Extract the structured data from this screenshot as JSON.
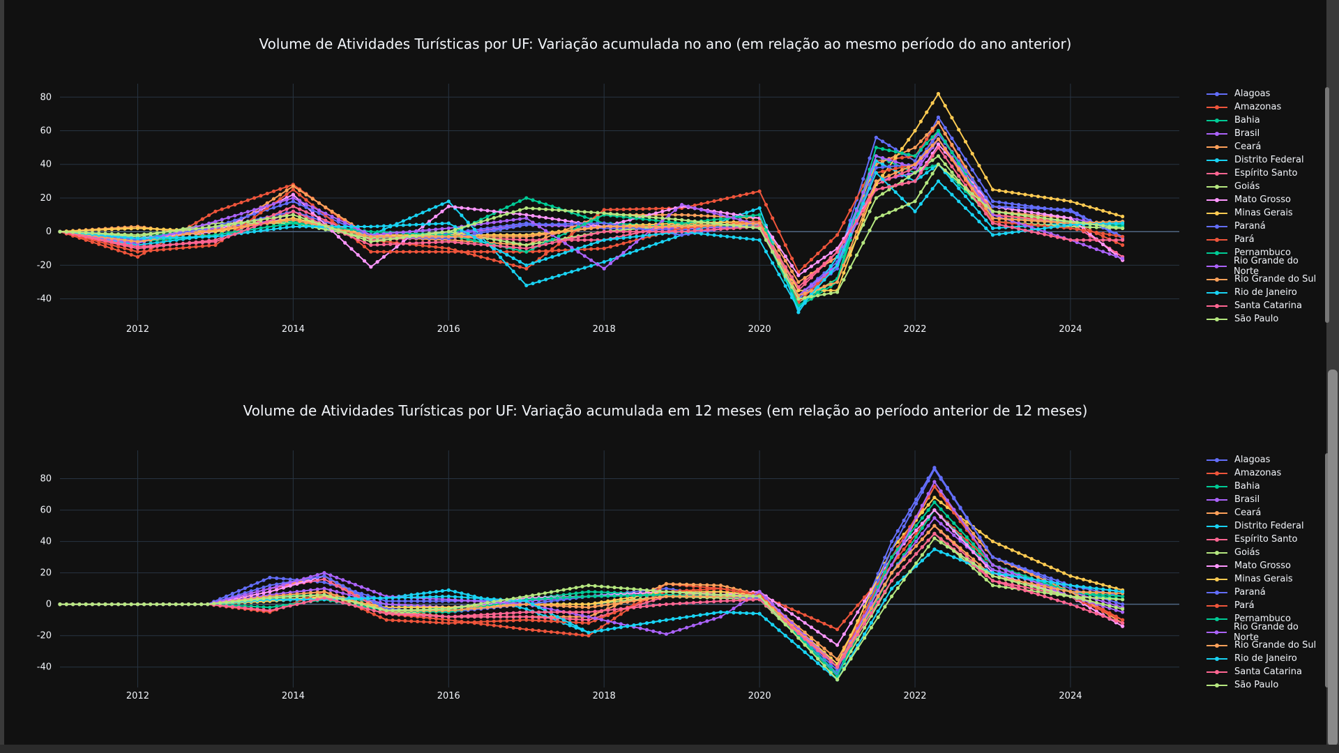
{
  "colors": {
    "background": "#111111",
    "grid": "#283442",
    "text": "#f2f5fa"
  },
  "series_names": [
    "Alagoas",
    "Amazonas",
    "Bahia",
    "Brasil",
    "Ceará",
    "Distrito Federal",
    "Espírito Santo",
    "Goiás",
    "Mato Grosso",
    "Minas Gerais",
    "Paraná",
    "Pará",
    "Pernambuco",
    "Rio Grande do Norte",
    "Rio Grande do Sul",
    "Rio de Janeiro",
    "Santa Catarina",
    "São Paulo"
  ],
  "series_colors": [
    "#636efa",
    "#EF553B",
    "#00cc96",
    "#ab63fa",
    "#FFA15A",
    "#19d3f3",
    "#FF6692",
    "#B6E880",
    "#FF97FF",
    "#FECB52",
    "#636efa",
    "#EF553B",
    "#00cc96",
    "#ab63fa",
    "#FFA15A",
    "#19d3f3",
    "#FF6692",
    "#B6E880"
  ],
  "chart_data": [
    {
      "type": "line",
      "title": "Volume de Atividades Turísticas por UF: Variação acumulada no ano (em relação ao mesmo período do ano anterior)",
      "xlabel": "",
      "ylabel": "",
      "xlim": [
        2011.0,
        2025.4
      ],
      "ylim": [
        -53,
        88
      ],
      "x_ticks": [
        2012,
        2014,
        2016,
        2018,
        2020,
        2022,
        2024
      ],
      "y_ticks": [
        -40,
        -20,
        0,
        20,
        40,
        60,
        80
      ],
      "x_anchor": [
        2011.0,
        2012.0,
        2013.0,
        2014.0,
        2015.0,
        2016.0,
        2017.0,
        2018.0,
        2019.0,
        2020.0,
        2020.5,
        2021.0,
        2021.5,
        2022.0,
        2022.3,
        2023.0,
        2024.0,
        2024.67
      ],
      "legend": "right",
      "grid": true,
      "series": [
        {
          "name": "Alagoas",
          "y": [
            0,
            -6,
            2,
            12,
            -3,
            -1,
            5,
            2,
            1,
            6,
            -38,
            -18,
            56,
            42,
            68,
            18,
            12,
            -3
          ]
        },
        {
          "name": "Amazonas",
          "y": [
            0,
            -15,
            12,
            28,
            -5,
            -10,
            -22,
            13,
            14,
            24,
            -24,
            -2,
            42,
            45,
            65,
            10,
            6,
            -8
          ]
        },
        {
          "name": "Bahia",
          "y": [
            0,
            -4,
            3,
            6,
            -4,
            -2,
            20,
            5,
            3,
            4,
            -45,
            -30,
            45,
            35,
            40,
            8,
            6,
            4
          ]
        },
        {
          "name": "Brasil",
          "y": [
            0,
            -5,
            2,
            8,
            -3,
            -2,
            4,
            3,
            2,
            3,
            -40,
            -20,
            30,
            35,
            55,
            12,
            8,
            2
          ]
        },
        {
          "name": "Ceará",
          "y": [
            0,
            3,
            -3,
            27,
            -3,
            -5,
            -8,
            10,
            10,
            8,
            -30,
            -15,
            40,
            50,
            65,
            12,
            8,
            -17
          ]
        },
        {
          "name": "Distrito Federal",
          "y": [
            0,
            -8,
            -2,
            5,
            -2,
            18,
            -32,
            -18,
            -2,
            14,
            -48,
            -15,
            42,
            30,
            40,
            2,
            5,
            6
          ]
        },
        {
          "name": "Espírito Santo",
          "y": [
            0,
            -10,
            -5,
            15,
            -5,
            -3,
            -5,
            -5,
            5,
            6,
            -35,
            -12,
            28,
            38,
            60,
            10,
            5,
            -15
          ]
        },
        {
          "name": "Goiás",
          "y": [
            0,
            -3,
            5,
            5,
            -4,
            0,
            -8,
            0,
            4,
            4,
            -42,
            -28,
            20,
            35,
            45,
            6,
            3,
            2
          ]
        },
        {
          "name": "Mato Grosso",
          "y": [
            0,
            -4,
            0,
            22,
            -21,
            15,
            10,
            3,
            15,
            8,
            -26,
            -10,
            25,
            30,
            52,
            15,
            8,
            -17
          ]
        },
        {
          "name": "Minas Gerais",
          "y": [
            0,
            2,
            0,
            8,
            -2,
            -2,
            -2,
            3,
            5,
            6,
            -35,
            -35,
            28,
            60,
            82,
            25,
            18,
            9
          ]
        },
        {
          "name": "Paraná",
          "y": [
            0,
            -5,
            3,
            18,
            -3,
            -4,
            4,
            5,
            -2,
            5,
            -40,
            -22,
            38,
            40,
            58,
            15,
            13,
            -4
          ]
        },
        {
          "name": "Pará",
          "y": [
            0,
            -12,
            -8,
            25,
            -12,
            -12,
            -12,
            -10,
            2,
            6,
            -42,
            -20,
            35,
            40,
            55,
            6,
            2,
            -3
          ]
        },
        {
          "name": "Pernambuco",
          "y": [
            0,
            -6,
            -2,
            5,
            0,
            -2,
            -12,
            10,
            5,
            10,
            -44,
            -28,
            50,
            45,
            60,
            8,
            5,
            3
          ]
        },
        {
          "name": "Rio Grande do Norte",
          "y": [
            0,
            -7,
            6,
            20,
            -2,
            2,
            8,
            -22,
            16,
            4,
            -38,
            -20,
            45,
            38,
            55,
            10,
            -5,
            -16
          ]
        },
        {
          "name": "Rio Grande do Sul",
          "y": [
            0,
            -6,
            1,
            7,
            -3,
            -3,
            -3,
            3,
            3,
            5,
            -38,
            -30,
            30,
            40,
            55,
            8,
            5,
            6
          ]
        },
        {
          "name": "Rio de Janeiro",
          "y": [
            0,
            -4,
            -3,
            3,
            3,
            5,
            -20,
            -5,
            0,
            -5,
            -46,
            -20,
            35,
            12,
            30,
            -2,
            4,
            5
          ]
        },
        {
          "name": "Santa Catarina",
          "y": [
            0,
            -9,
            -6,
            12,
            -8,
            -6,
            -10,
            0,
            0,
            3,
            -33,
            -12,
            25,
            30,
            50,
            5,
            -5,
            -5
          ]
        },
        {
          "name": "São Paulo",
          "y": [
            0,
            -2,
            3,
            10,
            -6,
            0,
            14,
            11,
            7,
            2,
            -40,
            -36,
            8,
            18,
            40,
            12,
            6,
            2
          ]
        }
      ]
    },
    {
      "type": "line",
      "title": "Volume de Atividades Turísticas por UF: Variação acumulada em 12 meses (em relação ao período anterior de 12 meses)",
      "xlabel": "",
      "ylabel": "",
      "xlim": [
        2011.0,
        2025.4
      ],
      "ylim": [
        -53,
        98
      ],
      "x_ticks": [
        2012,
        2014,
        2016,
        2018,
        2020,
        2022,
        2024
      ],
      "y_ticks": [
        -40,
        -20,
        0,
        20,
        40,
        60,
        80
      ],
      "x_anchor": [
        2011.0,
        2012.0,
        2012.9,
        2013.7,
        2014.4,
        2015.2,
        2016.0,
        2017.0,
        2017.8,
        2018.8,
        2019.5,
        2020.0,
        2021.0,
        2021.7,
        2022.25,
        2023.0,
        2024.0,
        2024.67
      ],
      "legend": "right",
      "grid": true,
      "series": [
        {
          "name": "Alagoas",
          "y": [
            0,
            0,
            0,
            17,
            14,
            2,
            2,
            3,
            5,
            10,
            5,
            4,
            -42,
            40,
            87,
            30,
            10,
            0
          ]
        },
        {
          "name": "Amazonas",
          "y": [
            0,
            0,
            0,
            8,
            18,
            -6,
            -10,
            -16,
            -20,
            13,
            10,
            6,
            -16,
            25,
            60,
            25,
            8,
            -10
          ]
        },
        {
          "name": "Bahia",
          "y": [
            0,
            0,
            0,
            5,
            6,
            0,
            -3,
            3,
            8,
            6,
            5,
            4,
            -44,
            20,
            60,
            22,
            8,
            3
          ]
        },
        {
          "name": "Brasil",
          "y": [
            0,
            0,
            0,
            6,
            10,
            0,
            -2,
            2,
            5,
            6,
            5,
            4,
            -38,
            20,
            55,
            22,
            8,
            -2
          ]
        },
        {
          "name": "Ceará",
          "y": [
            0,
            0,
            0,
            10,
            18,
            -4,
            -8,
            -8,
            -8,
            13,
            12,
            6,
            -35,
            25,
            75,
            30,
            8,
            -12
          ]
        },
        {
          "name": "Distrito Federal",
          "y": [
            0,
            0,
            0,
            2,
            4,
            4,
            9,
            -3,
            -18,
            -10,
            -5,
            -6,
            -48,
            10,
            35,
            20,
            12,
            8
          ]
        },
        {
          "name": "Espírito Santo",
          "y": [
            0,
            0,
            0,
            10,
            16,
            -5,
            -8,
            -8,
            -10,
            5,
            8,
            5,
            -40,
            20,
            50,
            15,
            5,
            -14
          ]
        },
        {
          "name": "Goiás",
          "y": [
            0,
            0,
            0,
            3,
            4,
            -6,
            -4,
            0,
            0,
            5,
            4,
            3,
            -45,
            15,
            45,
            12,
            5,
            3
          ]
        },
        {
          "name": "Mato Grosso",
          "y": [
            0,
            0,
            0,
            8,
            18,
            -3,
            -5,
            4,
            5,
            8,
            6,
            8,
            -26,
            30,
            60,
            20,
            5,
            -14
          ]
        },
        {
          "name": "Minas Gerais",
          "y": [
            0,
            0,
            0,
            2,
            5,
            -2,
            -2,
            0,
            0,
            8,
            8,
            6,
            -38,
            35,
            68,
            40,
            18,
            9
          ]
        },
        {
          "name": "Paraná",
          "y": [
            0,
            0,
            0,
            12,
            18,
            -3,
            -5,
            0,
            5,
            6,
            5,
            4,
            -45,
            35,
            86,
            30,
            12,
            5
          ]
        },
        {
          "name": "Pará",
          "y": [
            0,
            0,
            0,
            -5,
            8,
            -10,
            -12,
            -10,
            -12,
            8,
            10,
            6,
            -40,
            30,
            75,
            25,
            5,
            -10
          ]
        },
        {
          "name": "Pernambuco",
          "y": [
            0,
            0,
            0,
            -2,
            3,
            -4,
            -5,
            3,
            5,
            6,
            5,
            5,
            -46,
            30,
            65,
            25,
            8,
            5
          ]
        },
        {
          "name": "Rio Grande do Norte",
          "y": [
            0,
            0,
            0,
            10,
            20,
            5,
            3,
            0,
            -8,
            -19,
            -8,
            8,
            -40,
            25,
            78,
            25,
            5,
            -5
          ]
        },
        {
          "name": "Rio Grande do Sul",
          "y": [
            0,
            0,
            0,
            5,
            8,
            -4,
            -4,
            0,
            -2,
            5,
            5,
            5,
            -40,
            20,
            50,
            18,
            8,
            7
          ]
        },
        {
          "name": "Rio de Janeiro",
          "y": [
            0,
            0,
            0,
            3,
            3,
            4,
            5,
            2,
            -18,
            -10,
            -5,
            -6,
            -48,
            10,
            35,
            20,
            12,
            8
          ]
        },
        {
          "name": "Santa Catarina",
          "y": [
            0,
            0,
            0,
            -4,
            4,
            -6,
            -8,
            -5,
            -5,
            0,
            2,
            3,
            -40,
            15,
            45,
            15,
            0,
            -12
          ]
        },
        {
          "name": "São Paulo",
          "y": [
            0,
            0,
            0,
            4,
            6,
            -4,
            -3,
            5,
            12,
            8,
            6,
            5,
            -48,
            5,
            42,
            18,
            5,
            -3
          ]
        }
      ]
    }
  ]
}
